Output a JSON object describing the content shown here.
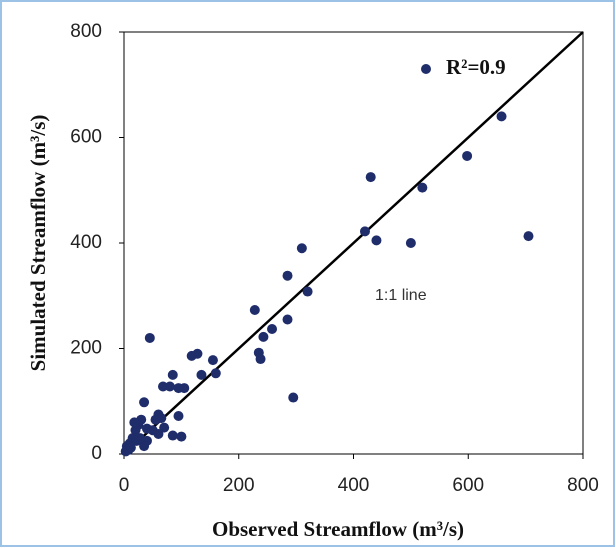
{
  "chart_data": {
    "type": "scatter",
    "xlabel": "Observed Streamflow (m³/s)",
    "ylabel": "Simulated Streamflow (m³/s)",
    "xlim": [
      0,
      800
    ],
    "ylim": [
      0,
      800
    ],
    "xticks": [
      0,
      200,
      400,
      600,
      800
    ],
    "yticks": [
      0,
      200,
      400,
      600,
      800
    ],
    "grid": false,
    "x": [
      658,
      598,
      520,
      430,
      420,
      440,
      500,
      705,
      310,
      285,
      320,
      228,
      285,
      258,
      243,
      235,
      238,
      295,
      160,
      155,
      135,
      128,
      118,
      105,
      95,
      85,
      80,
      68,
      45,
      60,
      65,
      55,
      70,
      60,
      35,
      95,
      85,
      100,
      30,
      40,
      25,
      20,
      15,
      10,
      5,
      3,
      8,
      12,
      22,
      40,
      35,
      50,
      18,
      28
    ],
    "series": [
      {
        "name": "R²=0.9",
        "color": "#1f2d6b",
        "values": [
          640,
          565,
          505,
          525,
          422,
          405,
          400,
          413,
          390,
          338,
          308,
          273,
          255,
          237,
          222,
          192,
          180,
          107,
          153,
          178,
          150,
          190,
          186,
          125,
          125,
          150,
          128,
          128,
          220,
          75,
          68,
          65,
          50,
          38,
          98,
          72,
          35,
          33,
          65,
          48,
          55,
          45,
          30,
          20,
          15,
          5,
          8,
          12,
          25,
          25,
          15,
          45,
          60,
          30
        ]
      }
    ],
    "reference_line": {
      "label": "1:1 line",
      "x": [
        0,
        800
      ],
      "y": [
        0,
        800
      ]
    }
  }
}
